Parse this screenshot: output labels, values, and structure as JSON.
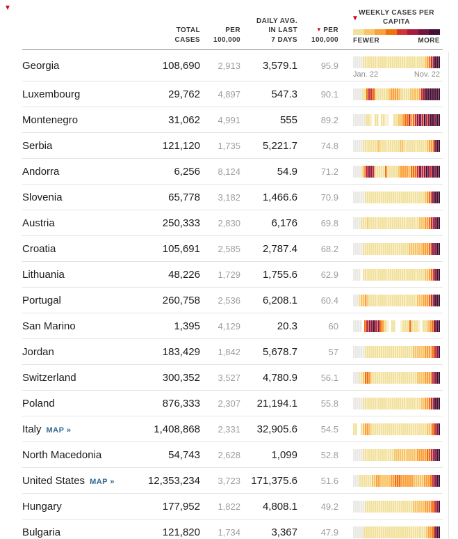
{
  "markers": {
    "glyph": "▼",
    "color": "#d0021b"
  },
  "header": {
    "col_total": {
      "l1": "TOTAL",
      "l2": "CASES"
    },
    "col_per": {
      "l1": "PER",
      "l2": "100,000"
    },
    "col_daily": {
      "l1": "DAILY AVG.",
      "l2": "IN LAST",
      "l3": "7 DAYS"
    },
    "col_sorted": {
      "arrow": "▼",
      "l1": "PER",
      "l2": "100,000"
    }
  },
  "legend": {
    "title_l1": "WEEKLY CASES PER",
    "title_l2": "CAPITA",
    "fewer": "FEWER",
    "more": "MORE",
    "start_date": "Jan. 22",
    "end_date": "Nov. 22",
    "gradient": [
      "#f2e19c",
      "#f8c468",
      "#fba03a",
      "#f0720e",
      "#cf3533",
      "#a81b3f",
      "#6f1540",
      "#421030"
    ]
  },
  "chart_data": {
    "type": "heatmap",
    "title": "Weekly cases per capita",
    "x_start": "Jan. 22",
    "x_end": "Nov. 22",
    "scale_labels": [
      "FEWER",
      "MORE"
    ],
    "palette": {
      "0": "#eae8e4",
      "w": "#ffffff",
      "1": "#f8f1cf",
      "2": "#f2e19c",
      "3": "#f8c468",
      "4": "#fba03a",
      "5": "#f0720e",
      "6": "#e0490f",
      "7": "#c5303a",
      "8": "#8e1a3e",
      "9": "#470f31"
    },
    "rows": [
      {
        "country": "Georgia",
        "map_label": "",
        "total_cases": "108,690",
        "per_100k": "2,913",
        "daily_avg": "3,579.1",
        "daily_per_100k": "95.9",
        "strip": "000002222222222222222222222222222222234578999"
      },
      {
        "country": "Luxembourg",
        "map_label": "",
        "total_cases": "29,762",
        "per_100k": "4,897",
        "daily_avg": "547.3",
        "daily_per_100k": "90.1",
        "strip": "0000225775222222344443222233334789999999"
      },
      {
        "country": "Montenegro",
        "map_label": "",
        "total_cases": "31,062",
        "per_100k": "4,991",
        "daily_avg": "555",
        "daily_per_100k": "89.2",
        "strip": "000000221w22w2211ww2233455745788797899899"
      },
      {
        "country": "Serbia",
        "map_label": "",
        "total_cases": "121,120",
        "per_100k": "1,735",
        "daily_avg": "5,221.7",
        "daily_per_100k": "74.8",
        "strip": "000002222222332222222222332222222222223445899"
      },
      {
        "country": "Andorra",
        "map_label": "",
        "total_cases": "6,256",
        "per_100k": "8,124",
        "daily_avg": "54.9",
        "daily_per_100k": "71.2",
        "strip": "00002478872222252222234444355578789879899"
      },
      {
        "country": "Slovenia",
        "map_label": "",
        "total_cases": "65,778",
        "per_100k": "3,182",
        "daily_avg": "1,466.6",
        "daily_per_100k": "70.9",
        "strip": "00000022222222222222222222222222222234578999"
      },
      {
        "country": "Austria",
        "map_label": "",
        "total_cases": "250,333",
        "per_100k": "2,830",
        "daily_avg": "6,176",
        "daily_per_100k": "69.8",
        "strip": "000022232222222222222222222222222233344578899"
      },
      {
        "country": "Croatia",
        "map_label": "",
        "total_cases": "105,691",
        "per_100k": "2,585",
        "daily_avg": "2,787.4",
        "daily_per_100k": "68.2",
        "strip": "00000222222222222222222222223333333444578899"
      },
      {
        "country": "Lithuania",
        "map_label": "",
        "total_cases": "48,226",
        "per_100k": "1,729",
        "daily_avg": "1,755.6",
        "daily_per_100k": "62.9",
        "strip": "0000w2222222222222222222222222222222233457899"
      },
      {
        "country": "Portugal",
        "map_label": "",
        "total_cases": "260,758",
        "per_100k": "2,536",
        "daily_avg": "6,208.1",
        "daily_per_100k": "60.4",
        "strip": "000233432222222222222222222222222333444578999"
      },
      {
        "country": "San Marino",
        "map_label": "",
        "total_cases": "1,395",
        "per_100k": "4,129",
        "daily_avg": "20.3",
        "daily_per_100k": "60",
        "strip": "0000w57889785421w22ww122252221w22345899"
      },
      {
        "country": "Jordan",
        "map_label": "",
        "total_cases": "183,429",
        "per_100k": "1,842",
        "daily_avg": "5,678.7",
        "daily_per_100k": "57",
        "strip": "00000022222222222222222222222233333344445789"
      },
      {
        "country": "Switzerland",
        "map_label": "",
        "total_cases": "300,352",
        "per_100k": "3,527",
        "daily_avg": "4,780.9",
        "daily_per_100k": "56.1",
        "strip": "00022355422222222222222222222222333344457899"
      },
      {
        "country": "Poland",
        "map_label": "",
        "total_cases": "876,333",
        "per_100k": "2,307",
        "daily_avg": "21,194.1",
        "daily_per_100k": "55.8",
        "strip": "000002222222222222222222222222222223344578999"
      },
      {
        "country": "Italy",
        "map_label": "MAP »",
        "total_cases": "1,408,868",
        "per_100k": "2,331",
        "daily_avg": "32,905.6",
        "daily_per_100k": "54.5",
        "strip": "22ww2344322222222222222222222222222223345789"
      },
      {
        "country": "North Macedonia",
        "map_label": "",
        "total_cases": "54,743",
        "per_100k": "2,628",
        "daily_avg": "1,099",
        "daily_per_100k": "52.8",
        "strip": "000002222222222222222333333333333444445578899"
      },
      {
        "country": "United States",
        "map_label": "MAP »",
        "total_cases": "12,353,234",
        "per_100k": "3,723",
        "daily_avg": "171,375.6",
        "daily_per_100k": "51.6",
        "strip": "000222222334433333445554444443333344457899"
      },
      {
        "country": "Hungary",
        "map_label": "",
        "total_cases": "177,952",
        "per_100k": "1,822",
        "daily_avg": "4,808.1",
        "daily_per_100k": "49.2",
        "strip": "00000022222222222222222222222233333344455789"
      },
      {
        "country": "Bulgaria",
        "map_label": "",
        "total_cases": "121,820",
        "per_100k": "1,734",
        "daily_avg": "3,367",
        "daily_per_100k": "47.9",
        "strip": "00000222222222222222222222222222223445899"
      }
    ]
  }
}
